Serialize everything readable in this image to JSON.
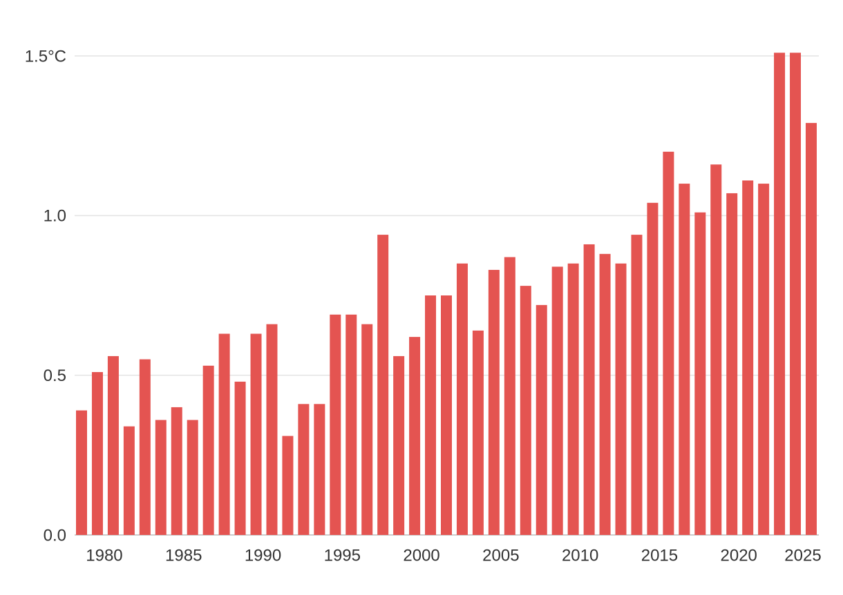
{
  "chart_data": {
    "type": "bar",
    "categories": [
      null,
      "1980",
      null,
      null,
      null,
      null,
      "1985",
      null,
      null,
      null,
      null,
      "1990",
      null,
      null,
      null,
      null,
      "1995",
      null,
      null,
      null,
      null,
      "2000",
      null,
      null,
      null,
      null,
      "2005",
      null,
      null,
      null,
      null,
      "2010",
      null,
      null,
      null,
      null,
      "2015",
      null,
      null,
      null,
      null,
      "2020",
      null,
      null,
      null,
      null,
      "2025"
    ],
    "values": [
      0.39,
      0.51,
      0.56,
      0.34,
      0.55,
      0.36,
      0.4,
      0.36,
      0.53,
      0.63,
      0.48,
      0.63,
      0.66,
      0.31,
      0.41,
      0.41,
      0.69,
      0.69,
      0.66,
      0.94,
      0.56,
      0.62,
      0.75,
      0.75,
      0.85,
      0.64,
      0.83,
      0.87,
      0.78,
      0.72,
      0.84,
      0.85,
      0.91,
      0.88,
      0.85,
      0.94,
      1.04,
      1.2,
      1.1,
      1.01,
      1.16,
      1.07,
      1.11,
      1.1,
      1.51,
      1.51,
      1.29
    ],
    "color": "#e45451",
    "ylim": [
      0,
      1.5
    ],
    "yticks": [
      {
        "value": 0,
        "label": "0.0"
      },
      0.5,
      {
        "value": 1,
        "label": "1.0"
      },
      {
        "value": 1.5,
        "label": "1.5°C"
      }
    ],
    "grid": true
  }
}
